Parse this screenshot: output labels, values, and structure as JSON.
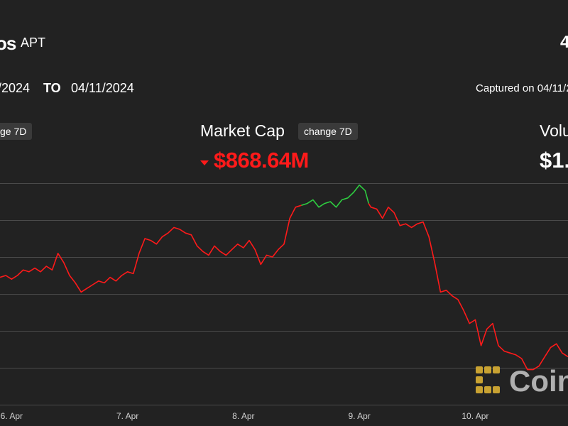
{
  "header": {
    "asset_name": "os",
    "asset_symbol": "APT",
    "right_edge_mark": "4",
    "date_from": "/2024",
    "date_to_label": "TO",
    "date_to": "04/11/2024",
    "captured": "Captured on 04/11/2"
  },
  "stats": {
    "left_badge": "ge 7D",
    "market_cap_label": "Market Cap",
    "market_cap_badge": "change 7D",
    "market_cap_value": "$868.64M",
    "market_cap_direction": "down",
    "volume_label": "Volu",
    "volume_value": "$1."
  },
  "colors": {
    "background": "#222222",
    "line_up": "#2ecc40",
    "line_down": "#ff1a1a",
    "grid": "#4a4a4a",
    "text": "#ffffff"
  },
  "watermark": {
    "text": "Coin",
    "icon": "coindesk-logo-icon"
  },
  "chart_data": {
    "type": "line",
    "title": "",
    "xlabel": "",
    "ylabel": "",
    "x_tick_labels": [
      "6. Apr",
      "7. Apr",
      "8. Apr",
      "9. Apr",
      "10. Apr"
    ],
    "x_range": [
      5.9,
      10.8
    ],
    "y_range": [
      0,
      6
    ],
    "grid": "horizontal",
    "series": [
      {
        "segment": "down",
        "x": [
          5.9,
          5.95,
          6.0,
          6.05,
          6.1,
          6.15,
          6.2,
          6.25,
          6.3,
          6.35,
          6.4,
          6.45,
          6.5,
          6.55,
          6.6,
          6.65,
          6.7,
          6.75,
          6.8,
          6.85,
          6.9,
          6.95,
          7.0,
          7.05,
          7.1,
          7.15,
          7.2,
          7.25,
          7.3,
          7.35,
          7.4,
          7.45,
          7.5,
          7.55,
          7.6,
          7.65,
          7.7,
          7.75,
          7.8,
          7.85,
          7.9,
          7.95,
          8.0,
          8.05,
          8.1,
          8.15,
          8.2,
          8.25,
          8.3,
          8.35,
          8.4,
          8.45,
          8.5
        ],
        "y": [
          3.45,
          3.5,
          3.4,
          3.5,
          3.65,
          3.6,
          3.7,
          3.6,
          3.75,
          3.65,
          4.1,
          3.85,
          3.5,
          3.3,
          3.05,
          3.15,
          3.25,
          3.35,
          3.3,
          3.45,
          3.35,
          3.5,
          3.6,
          3.55,
          4.1,
          4.5,
          4.45,
          4.35,
          4.55,
          4.65,
          4.8,
          4.75,
          4.65,
          4.6,
          4.3,
          4.15,
          4.05,
          4.3,
          4.15,
          4.05,
          4.2,
          4.35,
          4.25,
          4.45,
          4.2,
          3.8,
          4.05,
          4.0,
          4.2,
          4.35,
          5.05,
          5.35,
          5.4
        ]
      },
      {
        "segment": "up",
        "x": [
          8.5,
          8.55,
          8.6,
          8.65,
          8.7,
          8.75,
          8.8,
          8.85,
          8.9,
          8.95,
          9.0,
          9.05,
          9.08
        ],
        "y": [
          5.4,
          5.45,
          5.55,
          5.35,
          5.45,
          5.5,
          5.35,
          5.55,
          5.6,
          5.75,
          5.95,
          5.8,
          5.45
        ]
      },
      {
        "segment": "down",
        "x": [
          9.08,
          9.1,
          9.15,
          9.2,
          9.25,
          9.3,
          9.35,
          9.4,
          9.45,
          9.5,
          9.55,
          9.6,
          9.65,
          9.7,
          9.75,
          9.8,
          9.85,
          9.9,
          9.95,
          10.0,
          10.05,
          10.1,
          10.15,
          10.2,
          10.25,
          10.3,
          10.35,
          10.4,
          10.45,
          10.5,
          10.55,
          10.6,
          10.65,
          10.7,
          10.75,
          10.8
        ],
        "y": [
          5.45,
          5.35,
          5.3,
          5.05,
          5.35,
          5.2,
          4.85,
          4.9,
          4.8,
          4.9,
          4.95,
          4.55,
          3.85,
          3.05,
          3.1,
          2.95,
          2.85,
          2.55,
          2.2,
          2.3,
          1.6,
          2.05,
          2.2,
          1.6,
          1.45,
          1.4,
          1.35,
          1.25,
          0.95,
          0.95,
          1.05,
          1.3,
          1.55,
          1.65,
          1.4,
          1.3
        ]
      }
    ]
  }
}
